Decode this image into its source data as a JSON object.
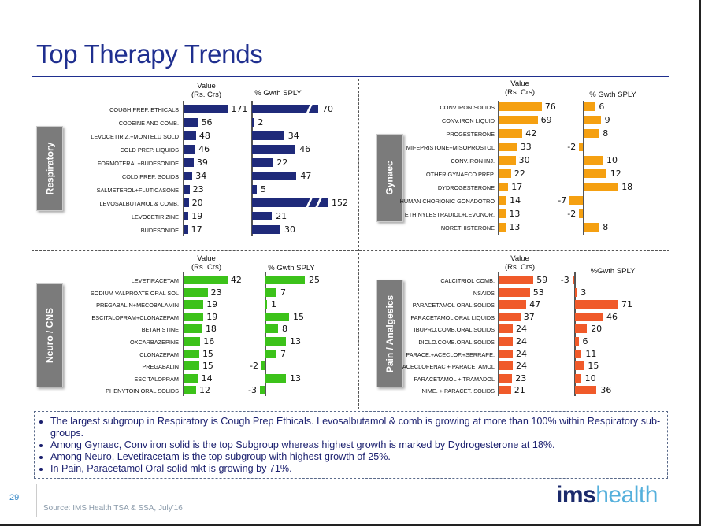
{
  "title": "Top Therapy Trends",
  "page_number": "29",
  "source": "Source: IMS Health TSA & SSA, July'16",
  "logo": {
    "bold": "ims",
    "light": "health"
  },
  "notes": [
    "The largest subgroup in Respiratory is Cough Prep Ethicals. Levosalbutamol & comb is growing at more than 100% within Respiratory sub-groups.",
    "Among Gynaec, Conv iron solid is the top Subgroup whereas highest growth is marked by Dydrogesterone at 18%.",
    "Among  Neuro, Levetiracetam is the top subgroup with highest growth of 25%.",
    "In Pain, Paracetamol Oral solid mkt is growing by 71%."
  ],
  "chart_data": [
    {
      "type": "bar",
      "orientation": "horizontal",
      "section": "Respiratory",
      "color": "#1f2a7a",
      "value_header": "Value\n(Rs. Crs)",
      "growth_header": "% Gwth SPLY",
      "categories": [
        "COUGH PREP. ETHICALS",
        "CODEINE AND COMB.",
        "LEVOCETIRIZ.+MONTELU SOLD",
        "COLD PREP. LIQUIDS",
        "FORMOTERAL+BUDESONIDE",
        "COLD PREP. SOLIDS",
        "SALMETEROL+FLUTICASONE",
        "LEVOSALBUTAMOL & COMB.",
        "LEVOCETIRIZINE",
        "BUDESONIDE"
      ],
      "series": [
        {
          "name": "Value (Rs. Crs)",
          "values": [
            171,
            56,
            48,
            46,
            39,
            34,
            23,
            20,
            19,
            17
          ]
        },
        {
          "name": "% Gwth SPLY",
          "values": [
            70,
            2,
            34,
            46,
            22,
            47,
            5,
            152,
            21,
            30
          ],
          "broken_axis": [
            true,
            false,
            false,
            false,
            false,
            false,
            false,
            true,
            false,
            false
          ]
        }
      ]
    },
    {
      "type": "bar",
      "orientation": "horizontal",
      "section": "Gynaec",
      "color": "#f5a011",
      "value_header": "Value\n(Rs. Crs)",
      "growth_header": "% Gwth SPLY",
      "categories": [
        "CONV.IRON SOLIDS",
        "CONV.IRON LIQUID",
        "PROGESTERONE",
        "MIFEPRISTONE+MISOPROSTOL",
        "CONV.IRON INJ.",
        "OTHER GYNAECO.PREP.",
        "DYDROGESTERONE",
        "HUMAN CHORIONIC GONADOTRO",
        "ETHINYLESTRADIOL+LEVONOR.",
        "NORETHISTERONE"
      ],
      "series": [
        {
          "name": "Value (Rs. Crs)",
          "values": [
            76,
            69,
            42,
            33,
            30,
            22,
            17,
            14,
            13,
            13
          ]
        },
        {
          "name": "% Gwth SPLY",
          "values": [
            6,
            9,
            8,
            -2,
            10,
            12,
            18,
            -7,
            -2,
            8
          ]
        }
      ]
    },
    {
      "type": "bar",
      "orientation": "horizontal",
      "section": "Neuro / CNS",
      "color": "#3cc21a",
      "value_header": "Value\n(Rs. Crs)",
      "growth_header": "% Gwth SPLY",
      "categories": [
        "LEVETIRACETAM",
        "SODIUM VALPROATE ORAL SOL",
        "PREGABALIN+MECOBALAMIN",
        "ESCITALOPRAM+CLONAZEPAM",
        "BETAHISTINE",
        "OXCARBAZEPINE",
        "CLONAZEPAM",
        "PREGABALIN",
        "ESCITALOPRAM",
        "PHENYTOIN ORAL SOLIDS"
      ],
      "series": [
        {
          "name": "Value (Rs. Crs)",
          "values": [
            42,
            23,
            19,
            19,
            18,
            16,
            15,
            15,
            14,
            12
          ]
        },
        {
          "name": "% Gwth SPLY",
          "values": [
            25,
            7,
            1,
            15,
            8,
            13,
            7,
            -2,
            13,
            -3
          ]
        }
      ]
    },
    {
      "type": "bar",
      "orientation": "horizontal",
      "section": "Pain / Analgesics",
      "color": "#f05a2a",
      "value_header": "Value\n(Rs. Crs)",
      "growth_header": "%Gwth SPLY",
      "categories": [
        "CALCITRIOL COMB.",
        "NSAIDS",
        "PARACETAMOL ORAL SOLIDS",
        "PARACETAMOL ORAL LIQUIDS",
        "IBUPRO.COMB.ORAL SOLIDS",
        "DICLO.COMB.ORAL SOLIDS",
        "PARACE.+ACECLOF.+SERRAPE.",
        "ACECLOFENAC + PARACETAMOL",
        "PARACETAMOL + TRAMADOL",
        "NIME. + PARACET. SOLIDS"
      ],
      "series": [
        {
          "name": "Value (Rs. Crs)",
          "values": [
            59,
            53,
            47,
            37,
            24,
            24,
            24,
            24,
            23,
            21
          ]
        },
        {
          "name": "% Gwth SPLY",
          "values": [
            -3,
            3,
            71,
            46,
            20,
            6,
            11,
            15,
            10,
            36
          ]
        }
      ]
    }
  ]
}
